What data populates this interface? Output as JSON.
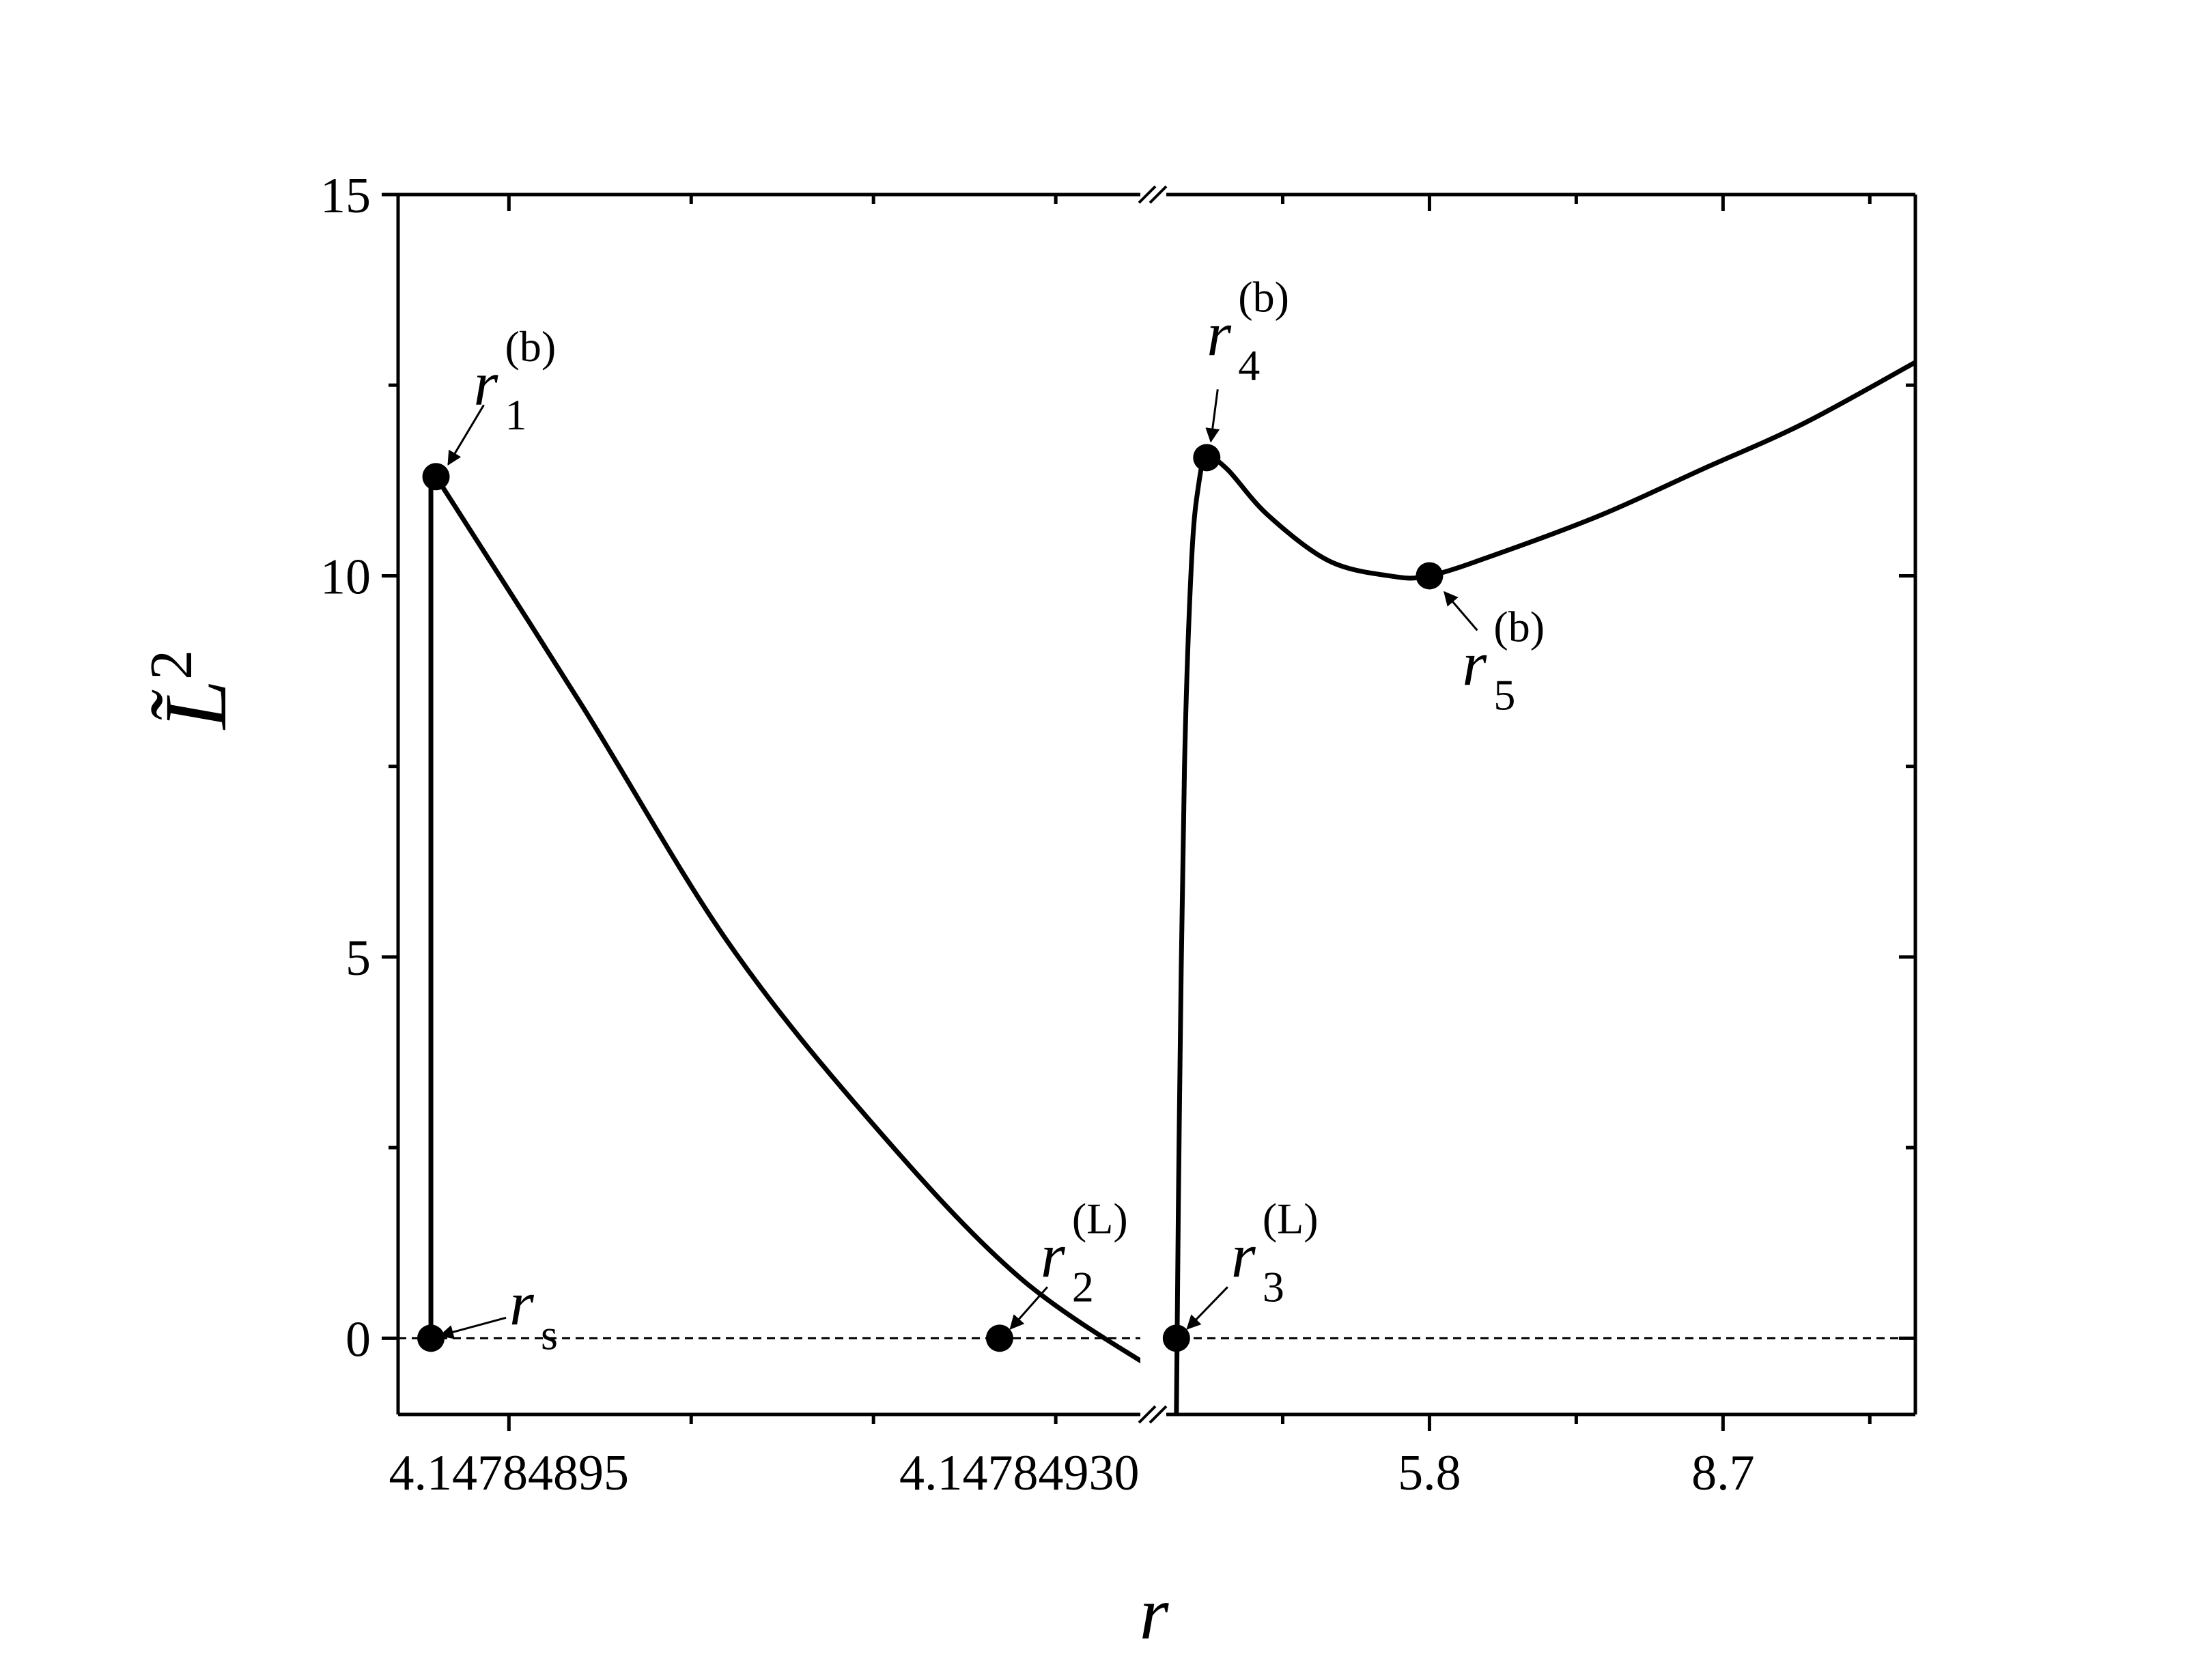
{
  "chart_data": {
    "type": "line",
    "xlabel": "r",
    "ylabel": "L̃",
    "ylabel_sup": "2",
    "ylim": [
      -1,
      15
    ],
    "yticks": [
      0,
      5,
      10,
      15
    ],
    "y_minor_step": 2.5,
    "x_broken_axis": true,
    "grid": false,
    "legend": "none",
    "line_color": "#000000",
    "reference_line": {
      "y": 0,
      "style": "dashed"
    },
    "left_segment": {
      "xlim": [
        4.147848874,
        4.147849383
      ],
      "xticks": [
        4.14784895,
        4.1478493
      ],
      "xtick_labels": [
        "4.14784895",
        "4.14784930"
      ],
      "x_minor_step": 1.25e-07,
      "curves": [
        {
          "name": "",
          "x": [
            4.1478488965,
            4.1478488965,
            4.1478488965
          ],
          "y": [
            0,
            6,
            11.3
          ]
        },
        {
          "name": "",
          "x": [
            4.1478489,
            4.147849,
            4.1478491,
            4.1478492,
            4.1478493,
            4.1478494
          ],
          "y": [
            11.3,
            8.3,
            5.2,
            2.8,
            0.8,
            -0.5
          ]
        }
      ]
    },
    "right_segment": {
      "xlim": [
        3.2,
        10.6
      ],
      "xticks": [
        5.8,
        8.7
      ],
      "xtick_labels": [
        "5.8",
        "8.7"
      ],
      "x_minor_step": 1.45,
      "curves": [
        {
          "name": "",
          "x": [
            3.3,
            3.33,
            3.38,
            3.45,
            3.52,
            3.6,
            3.8,
            4.2,
            4.8,
            5.4,
            5.8,
            6.5,
            7.5,
            8.5,
            9.5,
            10.6
          ],
          "y": [
            -1,
            3,
            7.5,
            10.2,
            11.2,
            11.55,
            11.4,
            10.8,
            10.2,
            10.0,
            10.0,
            10.3,
            10.8,
            11.4,
            12.0,
            12.8
          ]
        }
      ]
    },
    "points": [
      {
        "label": "r",
        "sub": "s",
        "sup": "",
        "segment": "left",
        "x": 4.1478488965,
        "y": 0
      },
      {
        "label": "r",
        "sub": "1",
        "sup": "(b)",
        "segment": "left",
        "x": 4.1478489,
        "y": 11.3
      },
      {
        "label": "r",
        "sub": "2",
        "sup": "(L)",
        "segment": "left",
        "x": 4.1478492865,
        "y": 0
      },
      {
        "label": "r",
        "sub": "3",
        "sup": "(L)",
        "segment": "right",
        "x": 3.3,
        "y": 0
      },
      {
        "label": "r",
        "sub": "4",
        "sup": "(b)",
        "segment": "right",
        "x": 3.6,
        "y": 11.55
      },
      {
        "label": "r",
        "sub": "5",
        "sup": "(b)",
        "segment": "right",
        "x": 5.8,
        "y": 10.0
      }
    ]
  }
}
